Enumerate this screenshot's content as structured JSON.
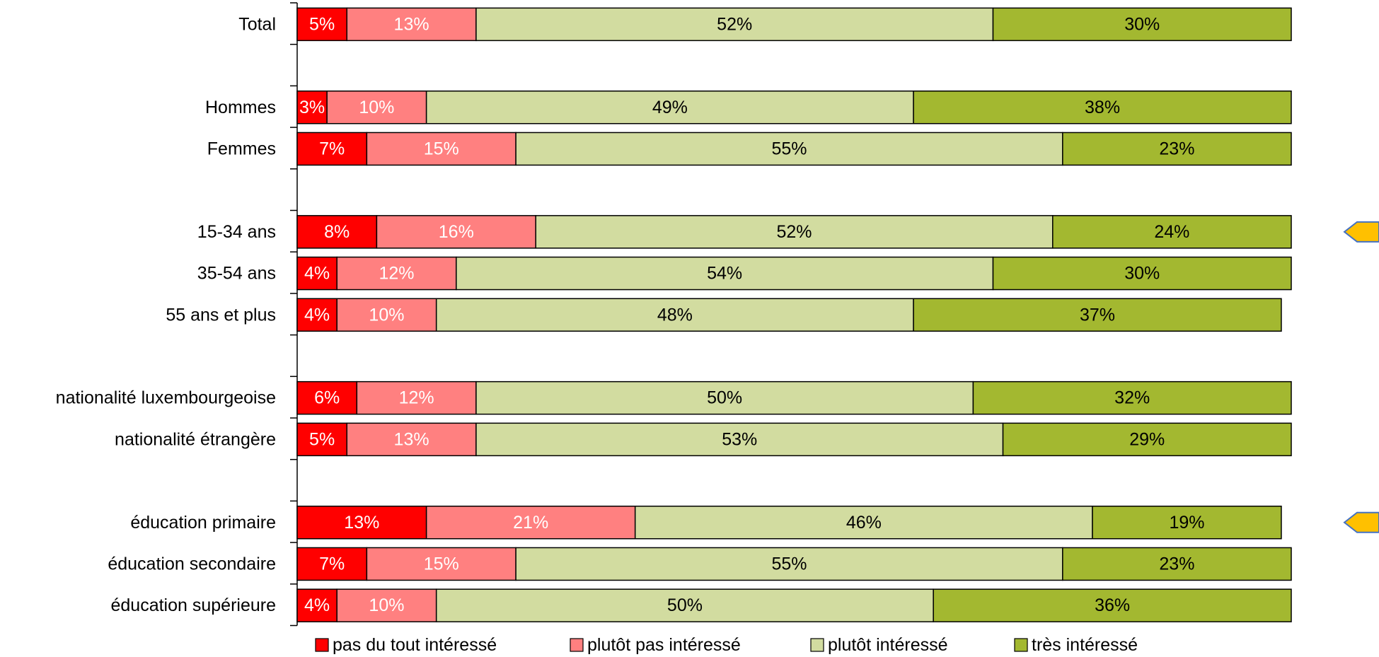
{
  "chart_data": {
    "type": "bar",
    "orientation": "horizontal",
    "stacked": true,
    "percent": true,
    "xlim": [
      0,
      100
    ],
    "grid": false,
    "legend_position": "bottom",
    "categories": [
      "Total",
      "",
      "Hommes",
      "Femmes",
      "",
      "15-34 ans",
      "35-54 ans",
      "55 ans et plus",
      "",
      "nationalité luxembourgeoise",
      "nationalité étrangère",
      "",
      "éducation primaire",
      "éducation secondaire",
      "éducation supérieure"
    ],
    "series": [
      {
        "name": "pas du tout intéressé",
        "color": "#FF0000",
        "label_color": "#FFFFFF",
        "values": [
          5,
          null,
          3,
          7,
          null,
          8,
          4,
          4,
          null,
          6,
          5,
          null,
          13,
          7,
          4
        ]
      },
      {
        "name": "plutôt pas intéressé",
        "color": "#FF8080",
        "label_color": "#FFFFFF",
        "values": [
          13,
          null,
          10,
          15,
          null,
          16,
          12,
          10,
          null,
          12,
          13,
          null,
          21,
          15,
          10
        ]
      },
      {
        "name": "plutôt intéressé",
        "color": "#D2DCA0",
        "label_color": "#000000",
        "values": [
          52,
          null,
          49,
          55,
          null,
          52,
          54,
          48,
          null,
          50,
          53,
          null,
          46,
          55,
          50
        ]
      },
      {
        "name": "très intéressé",
        "color": "#A3B830",
        "label_color": "#000000",
        "values": [
          30,
          null,
          38,
          23,
          null,
          24,
          30,
          37,
          null,
          32,
          29,
          null,
          19,
          23,
          36
        ]
      }
    ],
    "markers": [
      {
        "category": "15-34 ans",
        "shape": "left-arrow",
        "color": "#FFC000"
      },
      {
        "category": "éducation primaire",
        "shape": "left-arrow",
        "color": "#FFC000"
      }
    ]
  }
}
